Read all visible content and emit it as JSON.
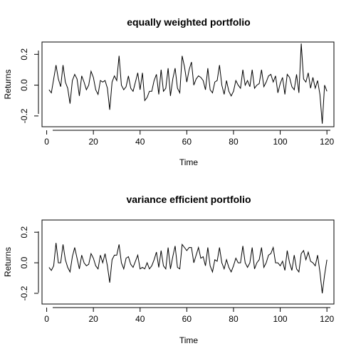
{
  "chart_data": [
    {
      "type": "line",
      "title": "equally weighted portfolio",
      "xlabel": "Time",
      "ylabel": "Returns",
      "xlim": [
        -2,
        123
      ],
      "ylim": [
        -0.27,
        0.28
      ],
      "xticks": [
        0,
        20,
        40,
        60,
        80,
        100,
        120
      ],
      "yticks": [
        -0.2,
        0.0,
        0.2
      ],
      "xtick_labels": [
        "0",
        "20",
        "40",
        "60",
        "80",
        "100",
        "120"
      ],
      "ytick_labels": [
        "-0.2",
        "0.0",
        "0.2"
      ],
      "x": [
        1,
        2,
        3,
        4,
        5,
        6,
        7,
        8,
        9,
        10,
        11,
        12,
        13,
        14,
        15,
        16,
        17,
        18,
        19,
        20,
        21,
        22,
        23,
        24,
        25,
        26,
        27,
        28,
        29,
        30,
        31,
        32,
        33,
        34,
        35,
        36,
        37,
        38,
        39,
        40,
        41,
        42,
        43,
        44,
        45,
        46,
        47,
        48,
        49,
        50,
        51,
        52,
        53,
        54,
        55,
        56,
        57,
        58,
        59,
        60,
        61,
        62,
        63,
        64,
        65,
        66,
        67,
        68,
        69,
        70,
        71,
        72,
        73,
        74,
        75,
        76,
        77,
        78,
        79,
        80,
        81,
        82,
        83,
        84,
        85,
        86,
        87,
        88,
        89,
        90,
        91,
        92,
        93,
        94,
        95,
        96,
        97,
        98,
        99,
        100,
        101,
        102,
        103,
        104,
        105,
        106,
        107,
        108,
        109,
        110,
        111,
        112,
        113,
        114,
        115,
        116,
        117,
        118,
        119,
        120
      ],
      "series": [
        {
          "values": [
            -0.03,
            -0.05,
            0.04,
            0.13,
            0.04,
            -0.01,
            0.13,
            0.02,
            -0.02,
            -0.12,
            0.03,
            0.07,
            0.04,
            -0.07,
            0.06,
            0.02,
            -0.03,
            0.0,
            0.09,
            0.05,
            -0.03,
            -0.06,
            0.03,
            0.02,
            0.03,
            -0.02,
            -0.16,
            0.02,
            0.06,
            0.03,
            0.19,
            0.0,
            -0.03,
            -0.01,
            0.06,
            -0.02,
            -0.04,
            0.02,
            0.08,
            -0.03,
            0.08,
            -0.1,
            -0.08,
            -0.04,
            -0.04,
            0.03,
            0.07,
            -0.06,
            0.1,
            -0.04,
            -0.02,
            0.11,
            -0.07,
            0.04,
            0.11,
            -0.02,
            -0.05,
            0.19,
            0.12,
            0.02,
            0.1,
            0.15,
            0.0,
            0.04,
            0.06,
            0.05,
            0.03,
            -0.03,
            0.11,
            -0.03,
            -0.05,
            0.02,
            0.03,
            0.13,
            0.0,
            -0.06,
            0.03,
            -0.04,
            -0.07,
            -0.04,
            0.03,
            0.0,
            -0.02,
            0.1,
            0.0,
            0.03,
            -0.01,
            0.1,
            -0.02,
            0.0,
            0.01,
            0.1,
            -0.01,
            0.02,
            0.06,
            0.07,
            0.02,
            0.06,
            -0.05,
            0.01,
            0.05,
            -0.06,
            0.07,
            0.05,
            -0.01,
            -0.03,
            0.07,
            -0.05,
            0.27,
            0.04,
            0.02,
            0.08,
            -0.02,
            0.05,
            -0.02,
            0.03,
            -0.06,
            -0.25,
            0.0,
            -0.04
          ]
        }
      ]
    },
    {
      "type": "line",
      "title": "variance efficient portfolio",
      "xlabel": "Time",
      "ylabel": "Returns",
      "xlim": [
        -2,
        123
      ],
      "ylim": [
        -0.27,
        0.28
      ],
      "xticks": [
        0,
        20,
        40,
        60,
        80,
        100,
        120
      ],
      "yticks": [
        -0.2,
        0.0,
        0.2
      ],
      "xtick_labels": [
        "0",
        "20",
        "40",
        "60",
        "80",
        "100",
        "120"
      ],
      "ytick_labels": [
        "-0.2",
        "0.0",
        "0.2"
      ],
      "x": [
        1,
        2,
        3,
        4,
        5,
        6,
        7,
        8,
        9,
        10,
        11,
        12,
        13,
        14,
        15,
        16,
        17,
        18,
        19,
        20,
        21,
        22,
        23,
        24,
        25,
        26,
        27,
        28,
        29,
        30,
        31,
        32,
        33,
        34,
        35,
        36,
        37,
        38,
        39,
        40,
        41,
        42,
        43,
        44,
        45,
        46,
        47,
        48,
        49,
        50,
        51,
        52,
        53,
        54,
        55,
        56,
        57,
        58,
        59,
        60,
        61,
        62,
        63,
        64,
        65,
        66,
        67,
        68,
        69,
        70,
        71,
        72,
        73,
        74,
        75,
        76,
        77,
        78,
        79,
        80,
        81,
        82,
        83,
        84,
        85,
        86,
        87,
        88,
        89,
        90,
        91,
        92,
        93,
        94,
        95,
        96,
        97,
        98,
        99,
        100,
        101,
        102,
        103,
        104,
        105,
        106,
        107,
        108,
        109,
        110,
        111,
        112,
        113,
        114,
        115,
        116,
        117,
        118,
        119,
        120
      ],
      "series": [
        {
          "values": [
            -0.03,
            -0.05,
            -0.02,
            0.13,
            0.0,
            0.0,
            0.12,
            0.02,
            -0.03,
            -0.06,
            0.04,
            0.1,
            0.03,
            -0.04,
            0.05,
            0.0,
            -0.02,
            -0.01,
            0.06,
            0.03,
            -0.02,
            -0.04,
            0.05,
            0.0,
            0.06,
            -0.02,
            -0.13,
            0.02,
            0.05,
            0.05,
            0.12,
            0.0,
            -0.04,
            0.03,
            0.04,
            -0.01,
            -0.03,
            0.01,
            0.05,
            -0.04,
            -0.03,
            -0.04,
            0.0,
            -0.04,
            -0.02,
            0.02,
            0.07,
            -0.03,
            0.08,
            -0.02,
            -0.04,
            0.1,
            -0.04,
            0.04,
            0.11,
            -0.03,
            -0.04,
            0.12,
            0.1,
            0.08,
            0.1,
            0.1,
            0.0,
            0.05,
            0.1,
            0.03,
            0.04,
            -0.02,
            0.1,
            -0.02,
            -0.06,
            0.02,
            0.01,
            0.1,
            0.0,
            -0.04,
            0.02,
            -0.03,
            -0.06,
            -0.02,
            0.03,
            0.0,
            0.0,
            0.11,
            0.0,
            -0.03,
            0.0,
            0.1,
            -0.04,
            0.0,
            0.02,
            0.1,
            -0.03,
            0.0,
            0.05,
            0.06,
            0.1,
            0.0,
            0.0,
            -0.02,
            0.01,
            -0.05,
            0.08,
            0.0,
            -0.05,
            0.05,
            -0.04,
            -0.06,
            0.06,
            0.08,
            0.02,
            0.07,
            0.01,
            0.0,
            -0.02,
            0.05,
            -0.06,
            -0.2,
            -0.08,
            0.02
          ]
        }
      ]
    }
  ]
}
